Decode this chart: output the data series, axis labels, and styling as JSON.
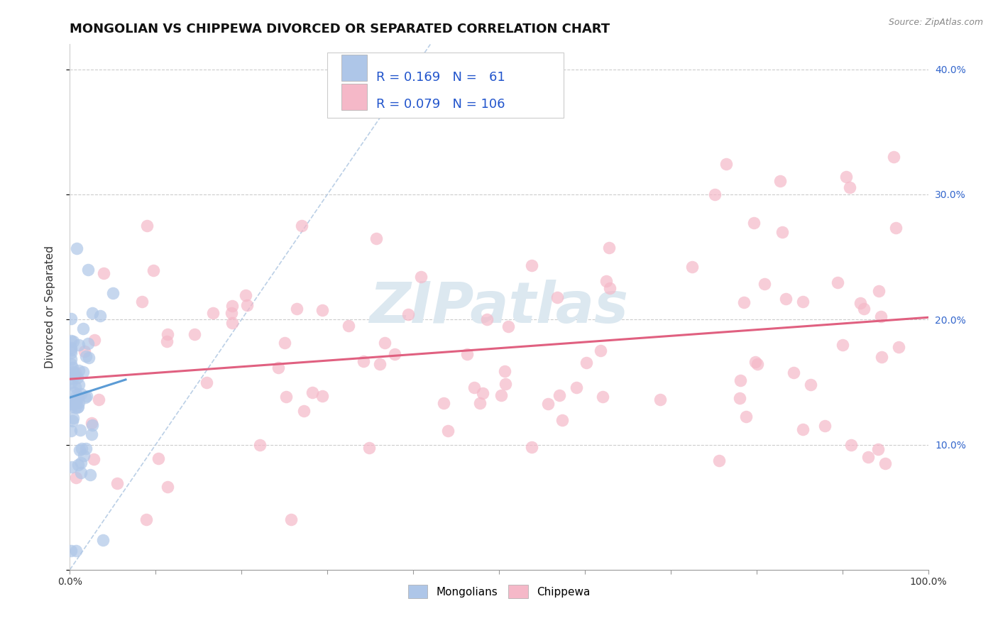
{
  "title": "MONGOLIAN VS CHIPPEWA DIVORCED OR SEPARATED CORRELATION CHART",
  "source_text": "Source: ZipAtlas.com",
  "ylabel": "Divorced or Separated",
  "xlim": [
    0.0,
    1.0
  ],
  "ylim": [
    0.0,
    0.42
  ],
  "x_ticks": [
    0.0,
    0.1,
    0.2,
    0.3,
    0.4,
    0.5,
    0.6,
    0.7,
    0.8,
    0.9,
    1.0
  ],
  "x_tick_labels": [
    "0.0%",
    "",
    "",
    "",
    "",
    "",
    "",
    "",
    "",
    "",
    "100.0%"
  ],
  "y_ticks": [
    0.0,
    0.1,
    0.2,
    0.3,
    0.4
  ],
  "y_tick_labels": [
    "",
    "10.0%",
    "20.0%",
    "30.0%",
    "40.0%"
  ],
  "mongolian_R": 0.169,
  "mongolian_N": 61,
  "chippewa_R": 0.079,
  "chippewa_N": 106,
  "mongolian_color": "#aec6e8",
  "chippewa_color": "#f5b8c8",
  "mongolian_line_color": "#5b9bd5",
  "chippewa_line_color": "#e06080",
  "diagonal_color": "#aac4e0",
  "background_color": "#ffffff",
  "watermark_text": "ZIPatlas",
  "watermark_color": "#dce8f0",
  "title_fontsize": 13,
  "label_fontsize": 11,
  "tick_fontsize": 10,
  "legend_text_color": "#2255cc",
  "right_tick_color": "#3366cc"
}
